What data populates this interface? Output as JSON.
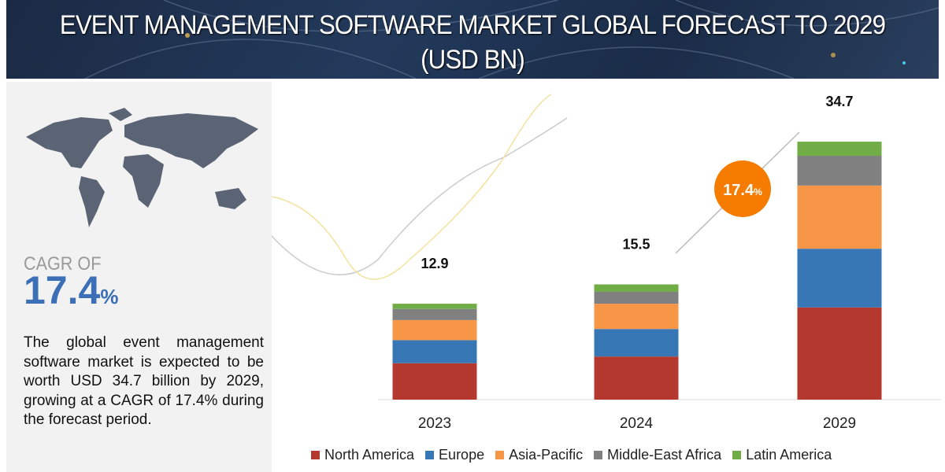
{
  "title": "EVENT MANAGEMENT SOFTWARE MARKET GLOBAL FORECAST TO 2029 (USD BN)",
  "left_panel": {
    "cagr_label": "CAGR OF",
    "cagr_value": "17.4",
    "cagr_unit": "%",
    "description": "The global event management software market is expected to be worth USD 34.7 billion by 2029, growing at a CAGR of 17.4% during the forecast period."
  },
  "chart_data": {
    "type": "bar",
    "stacked": true,
    "title": "EVENT MANAGEMENT SOFTWARE MARKET GLOBAL FORECAST TO 2029 (USD BN)",
    "categories": [
      "2023",
      "2024",
      "2029"
    ],
    "totals": [
      "12.9",
      "15.5",
      "34.7"
    ],
    "series": [
      {
        "name": "North America",
        "color": "#b5382f",
        "values": [
          4.9,
          5.8,
          12.4
        ]
      },
      {
        "name": "Europe",
        "color": "#3777b6",
        "values": [
          3.1,
          3.7,
          7.9
        ]
      },
      {
        "name": "Asia-Pacific",
        "color": "#f79646",
        "values": [
          2.7,
          3.4,
          8.5
        ]
      },
      {
        "name": "Middle-East Africa",
        "color": "#808080",
        "values": [
          1.5,
          1.6,
          4.0
        ]
      },
      {
        "name": "Latin America",
        "color": "#70ad47",
        "values": [
          0.7,
          1.0,
          1.9
        ]
      }
    ],
    "cagr_badge": {
      "value": "17.4",
      "unit": "%",
      "color": "#f57c00"
    },
    "legend_position": "bottom",
    "grid": false,
    "ylim": [
      0,
      34.7
    ]
  }
}
